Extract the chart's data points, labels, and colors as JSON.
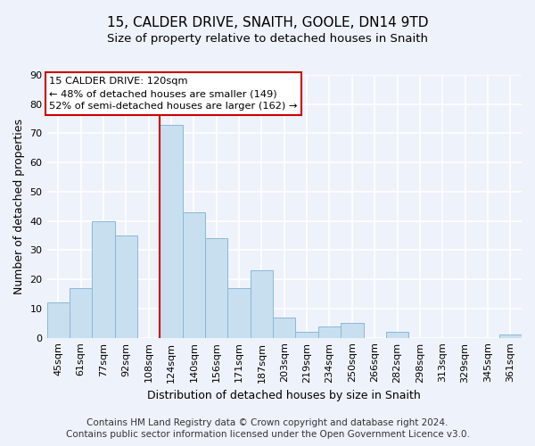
{
  "title": "15, CALDER DRIVE, SNAITH, GOOLE, DN14 9TD",
  "subtitle": "Size of property relative to detached houses in Snaith",
  "xlabel": "Distribution of detached houses by size in Snaith",
  "ylabel": "Number of detached properties",
  "bar_labels": [
    "45sqm",
    "61sqm",
    "77sqm",
    "92sqm",
    "108sqm",
    "124sqm",
    "140sqm",
    "156sqm",
    "171sqm",
    "187sqm",
    "203sqm",
    "219sqm",
    "234sqm",
    "250sqm",
    "266sqm",
    "282sqm",
    "298sqm",
    "313sqm",
    "329sqm",
    "345sqm",
    "361sqm"
  ],
  "bar_values": [
    12,
    17,
    40,
    35,
    0,
    73,
    43,
    34,
    17,
    23,
    7,
    2,
    4,
    5,
    0,
    2,
    0,
    0,
    0,
    0,
    1
  ],
  "bar_color": "#c8dff0",
  "bar_edgecolor": "#8ab8d8",
  "vline_color": "#cc0000",
  "ylim": [
    0,
    90
  ],
  "yticks": [
    0,
    10,
    20,
    30,
    40,
    50,
    60,
    70,
    80,
    90
  ],
  "annotation_line1": "15 CALDER DRIVE: 120sqm",
  "annotation_line2": "← 48% of detached houses are smaller (149)",
  "annotation_line3": "52% of semi-detached houses are larger (162) →",
  "footer_line1": "Contains HM Land Registry data © Crown copyright and database right 2024.",
  "footer_line2": "Contains public sector information licensed under the Open Government Licence v3.0.",
  "background_color": "#eef2fa",
  "grid_color": "#ffffff",
  "title_fontsize": 11,
  "subtitle_fontsize": 9.5,
  "axis_label_fontsize": 9,
  "tick_fontsize": 8,
  "footer_fontsize": 7.5
}
